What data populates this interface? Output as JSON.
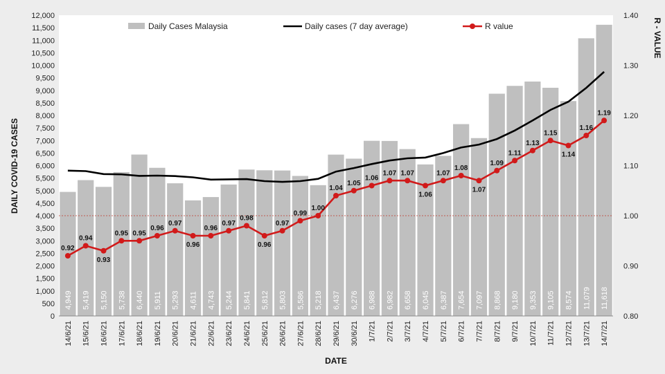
{
  "chart_data": {
    "type": "bar",
    "title": "",
    "xlabel": "DATE",
    "ylabel": "DAILY COVID-19 CASES",
    "y2label": "R - VALUE",
    "ylim": [
      0,
      12000
    ],
    "y2lim": [
      0.8,
      1.4
    ],
    "yticks": [
      "0",
      "500",
      "1,000",
      "1,500",
      "2,000",
      "2,500",
      "3,000",
      "3,500",
      "4,000",
      "4,500",
      "5,000",
      "5,500",
      "6,000",
      "6,500",
      "7,000",
      "7,500",
      "8,000",
      "8,500",
      "9,000",
      "9,500",
      "10,000",
      "10,500",
      "11,000",
      "11,500",
      "12,000"
    ],
    "y2ticks": [
      "0.80",
      "0.90",
      "1.00",
      "1.10",
      "1.20",
      "1.30",
      "1.40"
    ],
    "reference_line_r": 1.0,
    "categories": [
      "14/6/21",
      "15/6/21",
      "16/6/21",
      "17/6/21",
      "18/6/21",
      "19/6/21",
      "20/6/21",
      "21/6/21",
      "22/6/21",
      "23/6/21",
      "24/6/21",
      "25/6/21",
      "26/6/21",
      "27/6/21",
      "28/6/21",
      "29/6/21",
      "30/6/21",
      "1/7/21",
      "2/7/21",
      "3/7/21",
      "4/7/21",
      "5/7/21",
      "6/7/21",
      "7/7/21",
      "8/7/21",
      "9/7/21",
      "10/7/21",
      "11/7/21",
      "12/7/21",
      "13/7/21",
      "14/7/21"
    ],
    "series": [
      {
        "name": "Daily Cases Malaysia",
        "type": "bar",
        "color": "#bfbfbf",
        "values": [
          4949,
          5419,
          5150,
          5738,
          6440,
          5911,
          5293,
          4611,
          4743,
          5244,
          5841,
          5812,
          5803,
          5586,
          5218,
          6437,
          6276,
          6988,
          6982,
          6658,
          6045,
          6387,
          7654,
          7097,
          8868,
          9180,
          9353,
          9105,
          8574,
          11079,
          11618
        ],
        "labels": [
          "4,949",
          "5,419",
          "5,150",
          "5,738",
          "6,440",
          "5,911",
          "5,293",
          "4,611",
          "4,743",
          "5,244",
          "5,841",
          "5,812",
          "5,803",
          "5,586",
          "5,218",
          "6,437",
          "6,276",
          "6,988",
          "6,982",
          "6,658",
          "6,045",
          "6,387",
          "7,654",
          "7,097",
          "8,868",
          "9,180",
          "9,353",
          "9,105",
          "8,574",
          "11,079",
          "11,618"
        ]
      },
      {
        "name": "Daily cases (7 day average)",
        "type": "line",
        "color": "#000000",
        "values": [
          5800,
          5780,
          5660,
          5650,
          5590,
          5600,
          5580,
          5530,
          5440,
          5450,
          5460,
          5380,
          5350,
          5380,
          5470,
          5760,
          5900,
          6060,
          6200,
          6290,
          6320,
          6500,
          6720,
          6840,
          7060,
          7400,
          7800,
          8220,
          8550,
          9100,
          9740
        ]
      },
      {
        "name": "R value",
        "type": "line",
        "axis": "right",
        "color": "#d11a1a",
        "values": [
          0.92,
          0.94,
          0.93,
          0.95,
          0.95,
          0.96,
          0.97,
          0.96,
          0.96,
          0.97,
          0.98,
          0.96,
          0.97,
          0.99,
          1.0,
          1.04,
          1.05,
          1.06,
          1.07,
          1.07,
          1.06,
          1.07,
          1.08,
          1.07,
          1.09,
          1.11,
          1.13,
          1.15,
          1.14,
          1.16,
          1.19
        ],
        "labels": [
          "0.92",
          "0.94",
          "0.93",
          "0.95",
          "0.95",
          "0.96",
          "0.97",
          "0.96",
          "0.96",
          "0.97",
          "0.98",
          "0.96",
          "0.97",
          "0.99",
          "1.00",
          "1.04",
          "1.05",
          "1.06",
          "1.07",
          "1.07",
          "1.06",
          "1.07",
          "1.08",
          "1.07",
          "1.09",
          "1.11",
          "1.13",
          "1.15",
          "1.14",
          "1.16",
          "1.19"
        ]
      }
    ],
    "legend": [
      "Daily Cases Malaysia",
      "Daily cases (7 day average)",
      "R value"
    ],
    "legend_position": "top"
  }
}
